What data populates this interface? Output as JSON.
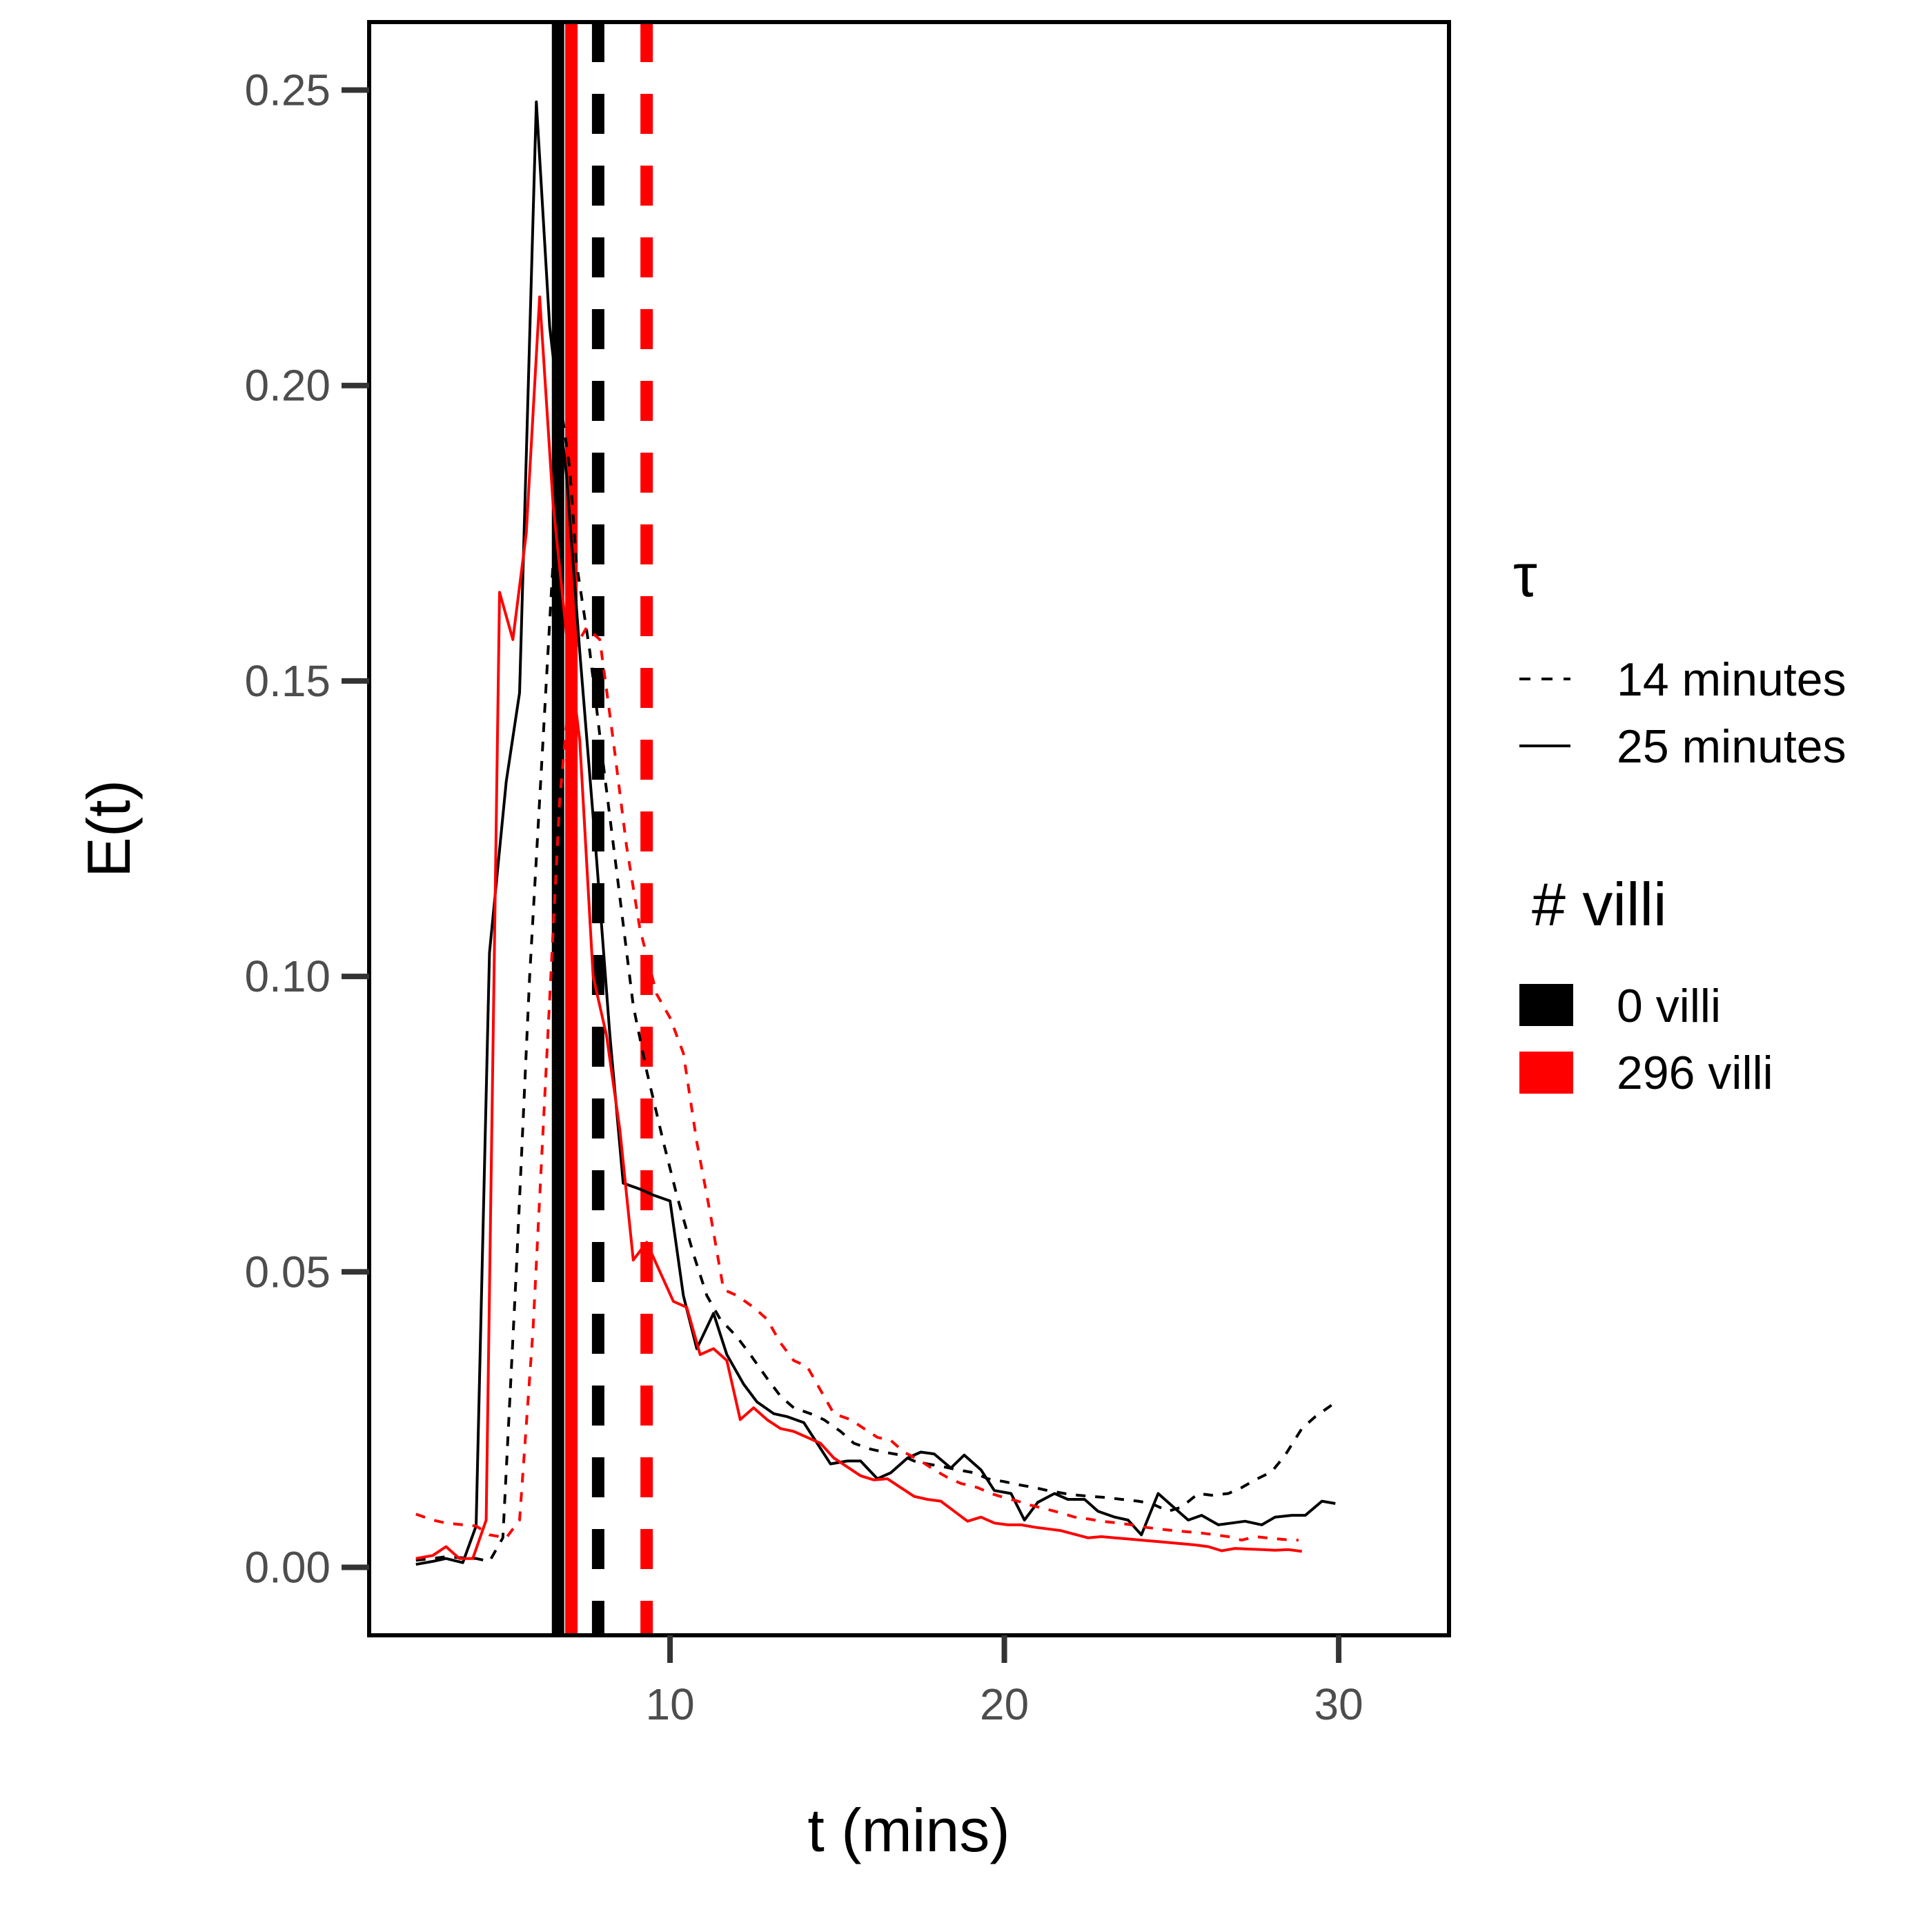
{
  "chart_data": {
    "type": "line",
    "title": "",
    "xlabel": "t (mins)",
    "ylabel": "E(t)",
    "xlim": [
      1,
      33.3
    ],
    "ylim": [
      -0.0115,
      0.2615
    ],
    "xticks": [
      10,
      20,
      30
    ],
    "yticks": [
      0.0,
      0.05,
      0.1,
      0.15,
      0.2,
      0.25
    ],
    "xtick_labels": [
      "10",
      "20",
      "30"
    ],
    "ytick_labels": [
      "0.00",
      "0.05",
      "0.10",
      "0.15",
      "0.20",
      "0.25"
    ],
    "grid": false,
    "legend": {
      "placement": "right",
      "tau_title": "τ",
      "tau_entries": [
        {
          "label": "14 minutes",
          "linetype": "dashed"
        },
        {
          "label": "25 minutes",
          "linetype": "solid"
        }
      ],
      "villi_title": "# villi",
      "villi_entries": [
        {
          "label": "0 villi",
          "color": "#000000"
        },
        {
          "label": "296 villi",
          "color": "#ff0000"
        }
      ]
    },
    "colors": {
      "0 villi": "#000000",
      "296 villi": "#ff0000"
    },
    "series": [
      {
        "villi": "0 villi",
        "tau": "25 minutes",
        "color": "#000000",
        "linetype": "solid",
        "points": [
          [
            2.4,
            0.0005
          ],
          [
            2.9,
            0.001
          ],
          [
            3.3,
            0.0015
          ],
          [
            3.8,
            0.0008
          ],
          [
            4.2,
            0.007
          ],
          [
            4.6,
            0.104
          ],
          [
            5.1,
            0.133
          ],
          [
            5.5,
            0.148
          ],
          [
            6.0,
            0.248
          ],
          [
            6.4,
            0.21
          ],
          [
            6.9,
            0.185
          ],
          [
            7.3,
            0.155
          ],
          [
            7.8,
            0.12
          ],
          [
            8.2,
            0.09
          ],
          [
            8.6,
            0.065
          ],
          [
            9.1,
            0.064
          ],
          [
            9.5,
            0.063
          ],
          [
            10.0,
            0.062
          ],
          [
            10.4,
            0.046
          ],
          [
            10.8,
            0.037
          ],
          [
            11.3,
            0.043
          ],
          [
            11.7,
            0.036
          ],
          [
            12.2,
            0.031
          ],
          [
            12.6,
            0.028
          ],
          [
            13.1,
            0.026
          ],
          [
            13.5,
            0.0255
          ],
          [
            14.0,
            0.0245
          ],
          [
            14.4,
            0.021
          ],
          [
            14.8,
            0.0175
          ],
          [
            15.3,
            0.018
          ],
          [
            15.7,
            0.018
          ],
          [
            16.2,
            0.015
          ],
          [
            16.6,
            0.016
          ],
          [
            17.1,
            0.0185
          ],
          [
            17.5,
            0.0195
          ],
          [
            17.9,
            0.0192
          ],
          [
            18.4,
            0.0168
          ],
          [
            18.8,
            0.019
          ],
          [
            19.3,
            0.0165
          ],
          [
            19.7,
            0.013
          ],
          [
            20.2,
            0.0125
          ],
          [
            20.6,
            0.008
          ],
          [
            21.0,
            0.011
          ],
          [
            21.5,
            0.0125
          ],
          [
            21.9,
            0.0115
          ],
          [
            22.4,
            0.0115
          ],
          [
            22.8,
            0.0095
          ],
          [
            23.3,
            0.0085
          ],
          [
            23.7,
            0.008
          ],
          [
            24.1,
            0.0055
          ],
          [
            24.6,
            0.0125
          ],
          [
            25.0,
            0.0105
          ],
          [
            25.5,
            0.008
          ],
          [
            25.9,
            0.0088
          ],
          [
            26.4,
            0.0072
          ],
          [
            26.8,
            0.0075
          ],
          [
            27.2,
            0.0078
          ],
          [
            27.7,
            0.0072
          ],
          [
            28.1,
            0.0085
          ],
          [
            28.6,
            0.0088
          ],
          [
            29.0,
            0.0088
          ],
          [
            29.5,
            0.0112
          ],
          [
            29.9,
            0.0108
          ]
        ]
      },
      {
        "villi": "0 villi",
        "tau": "14 minutes",
        "color": "#000000",
        "linetype": "dashed",
        "points": [
          [
            2.4,
            0.0012
          ],
          [
            2.9,
            0.0015
          ],
          [
            3.3,
            0.0018
          ],
          [
            3.8,
            0.0016
          ],
          [
            4.2,
            0.0015
          ],
          [
            4.6,
            0.001
          ],
          [
            5.0,
            0.005
          ],
          [
            5.4,
            0.05
          ],
          [
            5.8,
            0.1
          ],
          [
            6.2,
            0.14
          ],
          [
            6.6,
            0.18
          ],
          [
            6.8,
            0.194
          ],
          [
            7.0,
            0.186
          ],
          [
            7.2,
            0.17
          ],
          [
            7.6,
            0.155
          ],
          [
            8.0,
            0.136
          ],
          [
            8.4,
            0.118
          ],
          [
            8.9,
            0.095
          ],
          [
            9.3,
            0.084
          ],
          [
            9.8,
            0.072
          ],
          [
            10.2,
            0.063
          ],
          [
            10.7,
            0.053
          ],
          [
            11.1,
            0.046
          ],
          [
            11.5,
            0.042
          ],
          [
            12.0,
            0.039
          ],
          [
            12.4,
            0.036
          ],
          [
            12.9,
            0.032
          ],
          [
            13.3,
            0.029
          ],
          [
            13.7,
            0.027
          ],
          [
            14.2,
            0.026
          ],
          [
            14.6,
            0.025
          ],
          [
            15.1,
            0.023
          ],
          [
            15.5,
            0.021
          ],
          [
            16.0,
            0.02
          ],
          [
            16.4,
            0.0195
          ],
          [
            16.9,
            0.019
          ],
          [
            17.3,
            0.018
          ],
          [
            17.7,
            0.0175
          ],
          [
            18.2,
            0.017
          ],
          [
            18.6,
            0.0165
          ],
          [
            19.1,
            0.016
          ],
          [
            19.5,
            0.015
          ],
          [
            20.0,
            0.0145
          ],
          [
            20.4,
            0.014
          ],
          [
            20.9,
            0.0135
          ],
          [
            21.3,
            0.013
          ],
          [
            21.8,
            0.0125
          ],
          [
            22.2,
            0.0122
          ],
          [
            22.6,
            0.012
          ],
          [
            23.1,
            0.0118
          ],
          [
            23.5,
            0.0115
          ],
          [
            24.0,
            0.0112
          ],
          [
            24.4,
            0.0108
          ],
          [
            24.9,
            0.0095
          ],
          [
            25.3,
            0.0102
          ],
          [
            25.8,
            0.0125
          ],
          [
            26.2,
            0.0122
          ],
          [
            26.7,
            0.0125
          ],
          [
            27.1,
            0.0135
          ],
          [
            27.5,
            0.0148
          ],
          [
            28.0,
            0.0162
          ],
          [
            28.4,
            0.019
          ],
          [
            28.9,
            0.0235
          ],
          [
            29.3,
            0.0255
          ],
          [
            29.8,
            0.0275
          ]
        ]
      },
      {
        "villi": "296 villi",
        "tau": "25 minutes",
        "color": "#ff0000",
        "linetype": "solid",
        "points": [
          [
            2.4,
            0.0015
          ],
          [
            2.9,
            0.002
          ],
          [
            3.3,
            0.0035
          ],
          [
            3.7,
            0.0015
          ],
          [
            4.1,
            0.0015
          ],
          [
            4.5,
            0.008
          ],
          [
            4.9,
            0.165
          ],
          [
            5.3,
            0.157
          ],
          [
            5.7,
            0.175
          ],
          [
            6.1,
            0.215
          ],
          [
            6.5,
            0.18
          ],
          [
            6.9,
            0.158
          ],
          [
            7.3,
            0.14
          ],
          [
            7.7,
            0.1
          ],
          [
            8.1,
            0.09
          ],
          [
            8.5,
            0.074
          ],
          [
            8.9,
            0.052
          ],
          [
            9.3,
            0.055
          ],
          [
            9.7,
            0.05
          ],
          [
            10.1,
            0.045
          ],
          [
            10.5,
            0.044
          ],
          [
            10.9,
            0.036
          ],
          [
            11.3,
            0.037
          ],
          [
            11.7,
            0.035
          ],
          [
            12.1,
            0.025
          ],
          [
            12.5,
            0.027
          ],
          [
            12.9,
            0.025
          ],
          [
            13.3,
            0.0235
          ],
          [
            13.7,
            0.023
          ],
          [
            14.1,
            0.022
          ],
          [
            14.5,
            0.021
          ],
          [
            14.9,
            0.0185
          ],
          [
            15.3,
            0.017
          ],
          [
            15.7,
            0.0155
          ],
          [
            16.1,
            0.0148
          ],
          [
            16.5,
            0.015
          ],
          [
            16.9,
            0.0135
          ],
          [
            17.3,
            0.012
          ],
          [
            17.7,
            0.0115
          ],
          [
            18.1,
            0.0112
          ],
          [
            18.5,
            0.0095
          ],
          [
            18.9,
            0.0078
          ],
          [
            19.3,
            0.0085
          ],
          [
            19.7,
            0.0075
          ],
          [
            20.1,
            0.0072
          ],
          [
            20.5,
            0.0072
          ],
          [
            20.9,
            0.0068
          ],
          [
            21.3,
            0.0065
          ],
          [
            21.7,
            0.0062
          ],
          [
            22.1,
            0.0056
          ],
          [
            22.5,
            0.005
          ],
          [
            22.9,
            0.0052
          ],
          [
            23.3,
            0.005
          ],
          [
            23.7,
            0.0048
          ],
          [
            24.1,
            0.0046
          ],
          [
            24.5,
            0.0044
          ],
          [
            24.9,
            0.0042
          ],
          [
            25.3,
            0.004
          ],
          [
            25.7,
            0.0038
          ],
          [
            26.1,
            0.0035
          ],
          [
            26.5,
            0.0028
          ],
          [
            26.9,
            0.0032
          ],
          [
            27.3,
            0.0031
          ],
          [
            27.7,
            0.003
          ],
          [
            28.1,
            0.0029
          ],
          [
            28.5,
            0.003
          ],
          [
            28.9,
            0.0027
          ]
        ]
      },
      {
        "villi": "296 villi",
        "tau": "14 minutes",
        "color": "#ff0000",
        "linetype": "dashed",
        "points": [
          [
            2.4,
            0.009
          ],
          [
            2.9,
            0.008
          ],
          [
            3.3,
            0.0075
          ],
          [
            3.8,
            0.0072
          ],
          [
            4.2,
            0.007
          ],
          [
            4.6,
            0.0055
          ],
          [
            5.1,
            0.005
          ],
          [
            5.5,
            0.008
          ],
          [
            5.9,
            0.04
          ],
          [
            6.3,
            0.085
          ],
          [
            6.7,
            0.13
          ],
          [
            7.1,
            0.155
          ],
          [
            7.5,
            0.159
          ],
          [
            7.9,
            0.157
          ],
          [
            8.3,
            0.14
          ],
          [
            8.7,
            0.122
          ],
          [
            9.1,
            0.108
          ],
          [
            9.6,
            0.097
          ],
          [
            10.0,
            0.093
          ],
          [
            10.4,
            0.087
          ],
          [
            10.8,
            0.072
          ],
          [
            11.2,
            0.06
          ],
          [
            11.6,
            0.047
          ],
          [
            12.0,
            0.046
          ],
          [
            12.5,
            0.044
          ],
          [
            12.9,
            0.042
          ],
          [
            13.3,
            0.038
          ],
          [
            13.7,
            0.035
          ],
          [
            14.1,
            0.034
          ],
          [
            14.5,
            0.03
          ],
          [
            14.9,
            0.026
          ],
          [
            15.4,
            0.025
          ],
          [
            15.8,
            0.0235
          ],
          [
            16.2,
            0.022
          ],
          [
            16.6,
            0.0215
          ],
          [
            17.0,
            0.0195
          ],
          [
            17.5,
            0.018
          ],
          [
            17.9,
            0.0165
          ],
          [
            18.3,
            0.0152
          ],
          [
            18.7,
            0.0142
          ],
          [
            19.2,
            0.0135
          ],
          [
            19.6,
            0.0125
          ],
          [
            20.0,
            0.0118
          ],
          [
            20.4,
            0.0112
          ],
          [
            20.8,
            0.0105
          ],
          [
            21.3,
            0.0098
          ],
          [
            21.7,
            0.0092
          ],
          [
            22.1,
            0.0085
          ],
          [
            22.5,
            0.0082
          ],
          [
            22.9,
            0.0078
          ],
          [
            23.4,
            0.0075
          ],
          [
            23.8,
            0.0072
          ],
          [
            24.2,
            0.0068
          ],
          [
            24.6,
            0.0065
          ],
          [
            25.1,
            0.0062
          ],
          [
            25.5,
            0.006
          ],
          [
            25.9,
            0.0058
          ],
          [
            26.3,
            0.0055
          ],
          [
            26.7,
            0.0052
          ],
          [
            27.1,
            0.0046
          ],
          [
            27.5,
            0.0052
          ],
          [
            28.0,
            0.0049
          ],
          [
            28.4,
            0.0047
          ],
          [
            28.8,
            0.0046
          ]
        ]
      }
    ],
    "mean_lines": [
      {
        "villi": "0 villi",
        "tau": "25 minutes",
        "x": 6.65,
        "color": "#000000",
        "linetype": "solid"
      },
      {
        "villi": "296 villi",
        "tau": "25 minutes",
        "x": 7.05,
        "color": "#ff0000",
        "linetype": "solid"
      },
      {
        "villi": "0 villi",
        "tau": "14 minutes",
        "x": 7.85,
        "color": "#000000",
        "linetype": "dashed"
      },
      {
        "villi": "296 villi",
        "tau": "14 minutes",
        "x": 9.3,
        "color": "#ff0000",
        "linetype": "dashed"
      }
    ]
  }
}
